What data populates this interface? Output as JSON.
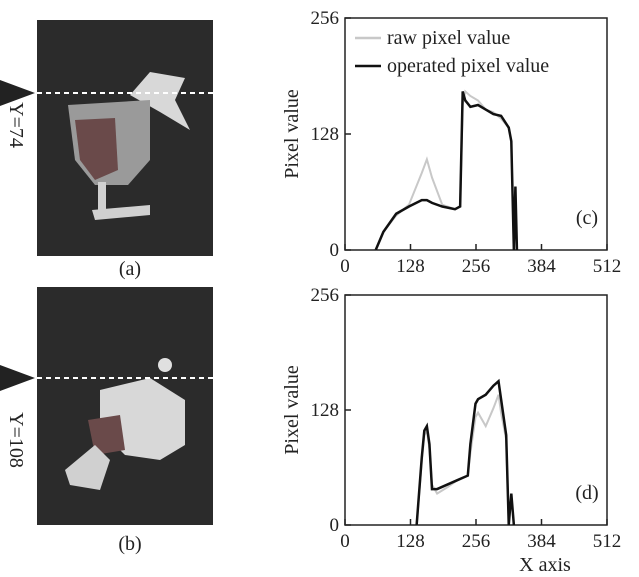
{
  "images": [
    {
      "label": "(a)",
      "row": "Y=74"
    },
    {
      "label": "(b)",
      "row": "Y=108"
    }
  ],
  "chart_data": [
    {
      "type": "line",
      "panel_label": "(c)",
      "ylabel": "Pixel value",
      "x": [
        60,
        75,
        100,
        125,
        150,
        160,
        170,
        190,
        215,
        225,
        230,
        235,
        245,
        260,
        275,
        290,
        305,
        320,
        325,
        330,
        333,
        336
      ],
      "series": [
        {
          "name": "raw pixel value",
          "color": "#c8c8c8",
          "values": [
            0,
            20,
            38,
            50,
            85,
            100,
            80,
            50,
            45,
            48,
            160,
            175,
            170,
            165,
            155,
            152,
            145,
            135,
            120,
            0,
            null,
            null
          ]
        },
        {
          "name": "operated pixel value",
          "color": "#111111",
          "values": [
            0,
            20,
            40,
            48,
            55,
            55,
            52,
            48,
            45,
            48,
            175,
            165,
            158,
            160,
            155,
            150,
            148,
            135,
            120,
            0,
            70,
            0
          ]
        }
      ],
      "xlim": [
        0,
        512
      ],
      "ylim": [
        0,
        256
      ],
      "xticks": [
        0,
        128,
        256,
        384,
        512
      ],
      "yticks": [
        0,
        128,
        256
      ],
      "legend": "upper left"
    },
    {
      "type": "line",
      "panel_label": "(d)",
      "ylabel": "Pixel value",
      "xlabel": "X axis",
      "x": [
        140,
        150,
        155,
        160,
        165,
        170,
        180,
        200,
        220,
        240,
        245,
        255,
        260,
        275,
        290,
        300,
        305,
        315,
        320,
        325,
        330
      ],
      "series": [
        {
          "color": "#c8c8c8",
          "values": [
            0,
            70,
            100,
            105,
            85,
            45,
            35,
            42,
            50,
            55,
            80,
            120,
            125,
            110,
            130,
            145,
            125,
            95,
            0,
            null,
            null
          ]
        },
        {
          "color": "#111111",
          "values": [
            0,
            75,
            105,
            110,
            90,
            40,
            40,
            45,
            50,
            55,
            90,
            135,
            140,
            145,
            155,
            160,
            140,
            100,
            0,
            35,
            0
          ]
        }
      ],
      "xlim": [
        0,
        512
      ],
      "ylim": [
        0,
        256
      ],
      "xticks": [
        0,
        128,
        256,
        384,
        512
      ],
      "yticks": [
        0,
        128,
        256
      ]
    }
  ]
}
